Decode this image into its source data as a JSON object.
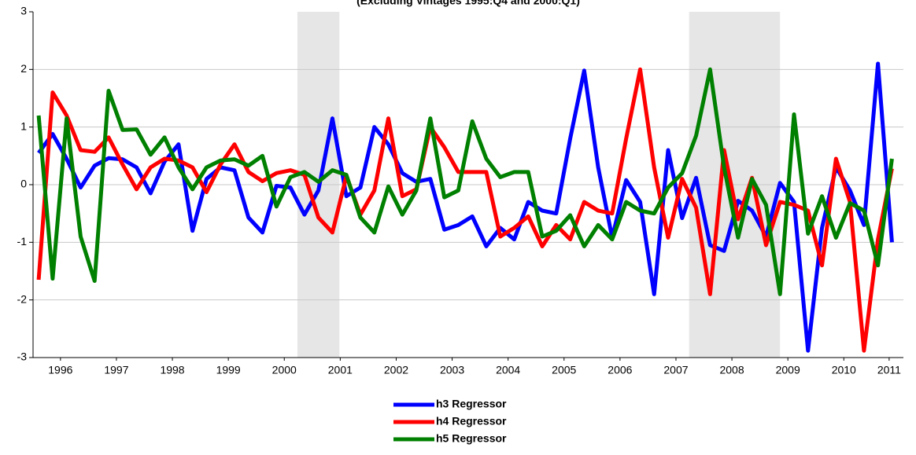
{
  "chart_data": {
    "type": "line",
    "title": "(Excluding Vintages 1995:Q4 and 2000:Q1)",
    "x": [
      1996,
      1996.25,
      1996.5,
      1996.75,
      1997,
      1997.25,
      1997.5,
      1997.75,
      1998,
      1998.25,
      1998.5,
      1998.75,
      1999,
      1999.25,
      1999.5,
      1999.75,
      2000,
      2000.25,
      2000.5,
      2000.75,
      2001,
      2001.25,
      2001.5,
      2001.75,
      2002,
      2002.25,
      2002.5,
      2002.75,
      2003,
      2003.25,
      2003.5,
      2003.75,
      2004,
      2004.25,
      2004.5,
      2004.75,
      2005,
      2005.25,
      2005.5,
      2005.75,
      2006,
      2006.25,
      2006.5,
      2006.75,
      2007,
      2007.25,
      2007.5,
      2007.75,
      2008,
      2008.25,
      2008.5,
      2008.75,
      2009,
      2009.25,
      2009.5,
      2009.75,
      2010,
      2010.25,
      2010.5,
      2010.75,
      2011,
      2011.25
    ],
    "series": [
      {
        "name": "h3 Regressor",
        "color": "#0000ff",
        "values": [
          0.55,
          0.88,
          0.45,
          -0.05,
          0.33,
          0.46,
          0.44,
          0.3,
          -0.15,
          0.4,
          0.7,
          -0.8,
          0.1,
          0.3,
          0.25,
          -0.57,
          -0.83,
          -0.02,
          -0.05,
          -0.52,
          -0.1,
          1.15,
          -0.2,
          -0.05,
          1.0,
          0.7,
          0.2,
          0.05,
          0.1,
          -0.78,
          -0.7,
          -0.55,
          -1.07,
          -0.75,
          -0.95,
          -0.3,
          -0.45,
          -0.5,
          0.8,
          1.98,
          0.3,
          -0.92,
          0.08,
          -0.3,
          -1.9,
          0.6,
          -0.58,
          0.12,
          -1.05,
          -1.15,
          -0.28,
          -0.45,
          -0.9,
          0.03,
          -0.3,
          -2.88,
          -0.75,
          0.3,
          -0.1,
          -0.7,
          2.1,
          -1.0
        ]
      },
      {
        "name": "h4 Regressor",
        "color": "#ff0000",
        "values": [
          -1.65,
          1.6,
          1.2,
          0.6,
          0.57,
          0.82,
          0.35,
          -0.08,
          0.3,
          0.45,
          0.42,
          0.3,
          -0.13,
          0.35,
          0.7,
          0.22,
          0.06,
          0.2,
          0.25,
          0.17,
          -0.57,
          -0.83,
          0.15,
          -0.52,
          -0.1,
          1.15,
          -0.2,
          -0.08,
          1.0,
          0.65,
          0.22,
          0.22,
          0.22,
          -0.9,
          -0.75,
          -0.55,
          -1.07,
          -0.7,
          -0.95,
          -0.3,
          -0.45,
          -0.5,
          0.8,
          2.0,
          0.3,
          -0.92,
          0.1,
          -0.4,
          -1.9,
          0.6,
          -0.6,
          0.12,
          -1.05,
          -0.3,
          -0.35,
          -0.45,
          -1.4,
          0.45,
          -0.3,
          -2.88,
          -0.95,
          0.28
        ]
      },
      {
        "name": "h5 Regressor",
        "color": "#008000",
        "values": [
          1.2,
          -1.63,
          1.15,
          -0.9,
          -1.67,
          1.63,
          0.95,
          0.96,
          0.52,
          0.82,
          0.3,
          -0.08,
          0.3,
          0.42,
          0.44,
          0.33,
          0.5,
          -0.38,
          0.13,
          0.22,
          0.05,
          0.25,
          0.17,
          -0.57,
          -0.83,
          -0.03,
          -0.52,
          -0.1,
          1.15,
          -0.22,
          -0.1,
          1.1,
          0.45,
          0.13,
          0.22,
          0.22,
          -0.9,
          -0.8,
          -0.53,
          -1.07,
          -0.7,
          -0.95,
          -0.3,
          -0.45,
          -0.5,
          -0.05,
          0.2,
          0.85,
          2.0,
          0.3,
          -0.92,
          0.1,
          -0.35,
          -1.9,
          1.22,
          -0.85,
          -0.2,
          -0.92,
          -0.32,
          -0.45,
          -1.4,
          0.45
        ]
      }
    ],
    "shaded_regions": [
      [
        2000.625,
        2001.375
      ],
      [
        2007.625,
        2009.25
      ]
    ],
    "shade_color": "#e6e6e6",
    "xlim": [
      1995.9,
      2011.455
    ],
    "xticks": [
      {
        "value": 1996.39,
        "label": "1996"
      },
      {
        "value": 1997.39,
        "label": "1997"
      },
      {
        "value": 1998.39,
        "label": "1998"
      },
      {
        "value": 1999.39,
        "label": "1999"
      },
      {
        "value": 2000.39,
        "label": "2000"
      },
      {
        "value": 2001.39,
        "label": "2001"
      },
      {
        "value": 2002.39,
        "label": "2002"
      },
      {
        "value": 2003.39,
        "label": "2003"
      },
      {
        "value": 2004.39,
        "label": "2004"
      },
      {
        "value": 2005.39,
        "label": "2005"
      },
      {
        "value": 2006.39,
        "label": "2006"
      },
      {
        "value": 2007.39,
        "label": "2007"
      },
      {
        "value": 2008.39,
        "label": "2008"
      },
      {
        "value": 2009.39,
        "label": "2009"
      },
      {
        "value": 2010.39,
        "label": "2010"
      },
      {
        "value": 2011.2,
        "label": "2011"
      }
    ],
    "ylim": [
      -3,
      3
    ],
    "yticks": [
      -3,
      -2,
      -1,
      0,
      1,
      2,
      3
    ],
    "grid": true
  }
}
